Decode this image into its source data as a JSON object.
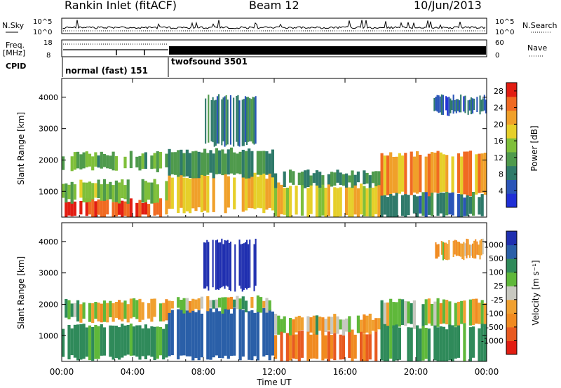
{
  "header": {
    "title": "Rankin Inlet (fitACF)",
    "beam": "Beam 12",
    "date": "10/Jun/2013"
  },
  "top_panels": {
    "nsky_label": "N.Sky",
    "nsky_ticks": [
      "10^5",
      "10^0"
    ],
    "nsearch_label": "N.Search",
    "nsearch_ticks": [
      "10^5",
      "10^0"
    ],
    "freq_label_1": "Freq.",
    "freq_label_2": "[MHz]",
    "freq_ticks": [
      "18",
      "8"
    ],
    "nave_label": "Nave",
    "nave_ticks": [
      "60",
      "0"
    ],
    "cpid_label": "CPID",
    "cpid_modes": [
      {
        "name": "normal (fast) 151",
        "start_hour": 0,
        "end_hour": 6
      },
      {
        "name": "twofsound 3501",
        "start_hour": 6,
        "end_hour": 24
      }
    ]
  },
  "colors": {
    "power_scale": [
      "#1f2fd6",
      "#2a55b8",
      "#2f7a6a",
      "#4f9a4c",
      "#7fbf3a",
      "#e6cf2a",
      "#f0a02a",
      "#f06a22",
      "#e21d12"
    ],
    "velocity_scale": [
      "#1f2fb0",
      "#2a5fa8",
      "#2f8a5a",
      "#5fb83a",
      "#c8c8c0",
      "#f0a030",
      "#f08a20",
      "#e85a20",
      "#e21d12"
    ]
  },
  "chart_data": [
    {
      "type": "heatmap",
      "title": "",
      "xlabel": "",
      "ylabel": "Slant Range [km]",
      "x_ticks": [
        "00:00",
        "04:00",
        "08:00",
        "12:00",
        "16:00",
        "20:00",
        "00:00"
      ],
      "xlim_hours": [
        0,
        24
      ],
      "y_ticks": [
        1000,
        2000,
        3000,
        4000
      ],
      "ylim": [
        180,
        4600
      ],
      "colorbar": {
        "label": "Power [dB]",
        "ticks": [
          4,
          8,
          12,
          16,
          20,
          24,
          28
        ],
        "range": [
          0,
          30
        ]
      },
      "bands": [
        {
          "t0": 0.0,
          "t1": 6.0,
          "r0": 180,
          "r1": 700,
          "level": 26
        },
        {
          "t0": 0.0,
          "t1": 6.0,
          "r0": 700,
          "r1": 1300,
          "level": 14
        },
        {
          "t0": 0.0,
          "t1": 6.0,
          "r0": 1700,
          "r1": 2200,
          "level": 12
        },
        {
          "t0": 6.0,
          "t1": 12.0,
          "r0": 400,
          "r1": 1500,
          "level": 20
        },
        {
          "t0": 6.0,
          "t1": 12.0,
          "r0": 1500,
          "r1": 2300,
          "level": 10
        },
        {
          "t0": 8.0,
          "t1": 11.0,
          "r0": 2500,
          "r1": 4000,
          "level": 8
        },
        {
          "t0": 12.0,
          "t1": 18.0,
          "r0": 200,
          "r1": 1200,
          "level": 18
        },
        {
          "t0": 12.0,
          "t1": 18.0,
          "r0": 1200,
          "r1": 1600,
          "level": 10
        },
        {
          "t0": 18.0,
          "t1": 24.0,
          "r0": 900,
          "r1": 2200,
          "level": 22
        },
        {
          "t0": 18.0,
          "t1": 24.0,
          "r0": 200,
          "r1": 900,
          "level": 8
        },
        {
          "t0": 21.0,
          "t1": 24.0,
          "r0": 3500,
          "r1": 4000,
          "level": 6
        }
      ]
    },
    {
      "type": "heatmap",
      "title": "",
      "xlabel": "Time UT",
      "ylabel": "Slant Range [km]",
      "x_ticks": [
        "00:00",
        "04:00",
        "08:00",
        "12:00",
        "16:00",
        "20:00",
        "00:00"
      ],
      "xlim_hours": [
        0,
        24
      ],
      "y_ticks": [
        1000,
        2000,
        3000,
        4000
      ],
      "ylim": [
        180,
        4600
      ],
      "colorbar": {
        "label": "Velocity [m s⁻¹]",
        "ticks": [
          1000,
          500,
          100,
          25,
          -25,
          -100,
          -500,
          -1000
        ],
        "range": [
          -1000,
          1000
        ]
      },
      "bands": [
        {
          "t0": 0.0,
          "t1": 6.0,
          "r0": 1500,
          "r1": 2100,
          "level": 0
        },
        {
          "t0": 0.0,
          "t1": 6.0,
          "r0": 300,
          "r1": 1300,
          "level": 100
        },
        {
          "t0": 6.0,
          "t1": 12.0,
          "r0": 300,
          "r1": 1800,
          "level": 500
        },
        {
          "t0": 6.0,
          "t1": 12.0,
          "r0": 1800,
          "r1": 2200,
          "level": 0
        },
        {
          "t0": 8.0,
          "t1": 11.0,
          "r0": 2500,
          "r1": 4000,
          "level": 800
        },
        {
          "t0": 12.0,
          "t1": 18.0,
          "r0": 200,
          "r1": 1100,
          "level": -300
        },
        {
          "t0": 12.0,
          "t1": 18.0,
          "r0": 1100,
          "r1": 1600,
          "level": 0
        },
        {
          "t0": 18.0,
          "t1": 24.0,
          "r0": 1300,
          "r1": 2100,
          "level": 0
        },
        {
          "t0": 18.0,
          "t1": 24.0,
          "r0": 200,
          "r1": 1300,
          "level": 100
        },
        {
          "t0": 21.0,
          "t1": 24.0,
          "r0": 3500,
          "r1": 4000,
          "level": -50
        }
      ]
    }
  ]
}
